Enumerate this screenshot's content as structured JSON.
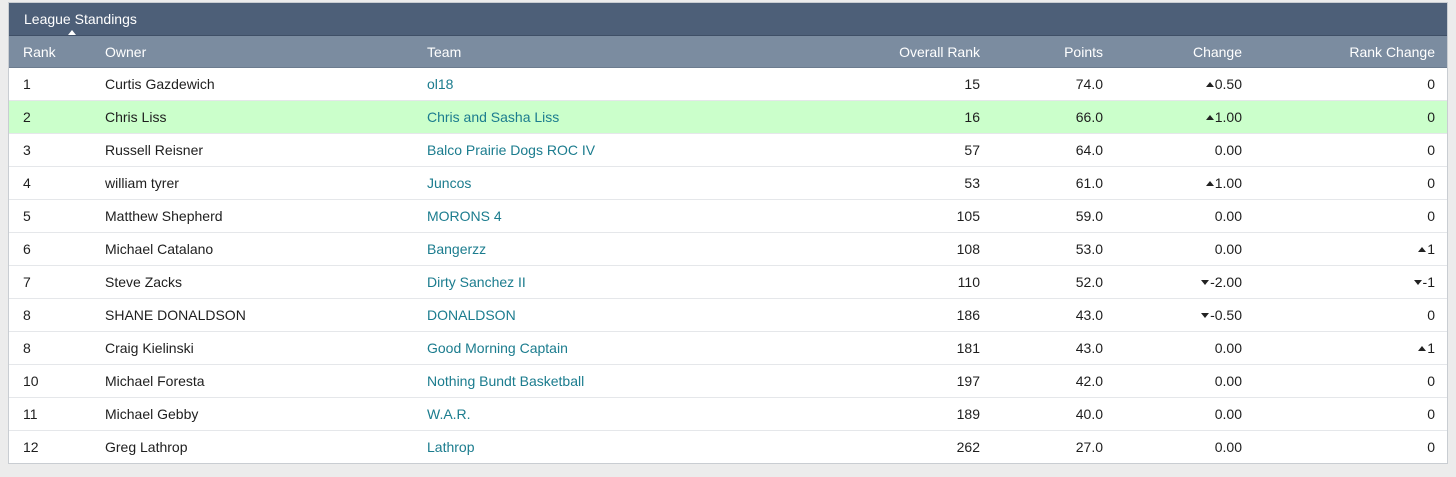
{
  "panel": {
    "title": "League Standings"
  },
  "columns": {
    "rank": "Rank",
    "owner": "Owner",
    "team": "Team",
    "overall_rank": "Overall Rank",
    "points": "Points",
    "change": "Change",
    "rank_change": "Rank Change"
  },
  "rows": [
    {
      "rank": "1",
      "owner": "Curtis Gazdewich",
      "team": "ol18",
      "overall_rank": "15",
      "points": "74.0",
      "change": "0.50",
      "change_dir": "up",
      "rank_change": "0",
      "rank_change_dir": "none",
      "highlight": false
    },
    {
      "rank": "2",
      "owner": "Chris Liss",
      "team": "Chris and Sasha Liss",
      "overall_rank": "16",
      "points": "66.0",
      "change": "1.00",
      "change_dir": "up",
      "rank_change": "0",
      "rank_change_dir": "none",
      "highlight": true
    },
    {
      "rank": "3",
      "owner": "Russell Reisner",
      "team": "Balco Prairie Dogs ROC IV",
      "overall_rank": "57",
      "points": "64.0",
      "change": "0.00",
      "change_dir": "none",
      "rank_change": "0",
      "rank_change_dir": "none",
      "highlight": false
    },
    {
      "rank": "4",
      "owner": "william tyrer",
      "team": "Juncos",
      "overall_rank": "53",
      "points": "61.0",
      "change": "1.00",
      "change_dir": "up",
      "rank_change": "0",
      "rank_change_dir": "none",
      "highlight": false
    },
    {
      "rank": "5",
      "owner": "Matthew Shepherd",
      "team": "MORONS 4",
      "overall_rank": "105",
      "points": "59.0",
      "change": "0.00",
      "change_dir": "none",
      "rank_change": "0",
      "rank_change_dir": "none",
      "highlight": false
    },
    {
      "rank": "6",
      "owner": "Michael Catalano",
      "team": "Bangerzz",
      "overall_rank": "108",
      "points": "53.0",
      "change": "0.00",
      "change_dir": "none",
      "rank_change": "1",
      "rank_change_dir": "up",
      "highlight": false
    },
    {
      "rank": "7",
      "owner": "Steve Zacks",
      "team": "Dirty Sanchez II",
      "overall_rank": "110",
      "points": "52.0",
      "change": "-2.00",
      "change_dir": "down",
      "rank_change": "-1",
      "rank_change_dir": "down",
      "highlight": false
    },
    {
      "rank": "8",
      "owner": "SHANE DONALDSON",
      "team": "DONALDSON",
      "overall_rank": "186",
      "points": "43.0",
      "change": "-0.50",
      "change_dir": "down",
      "rank_change": "0",
      "rank_change_dir": "none",
      "highlight": false
    },
    {
      "rank": "8",
      "owner": "Craig Kielinski",
      "team": "Good Morning Captain",
      "overall_rank": "181",
      "points": "43.0",
      "change": "0.00",
      "change_dir": "none",
      "rank_change": "1",
      "rank_change_dir": "up",
      "highlight": false
    },
    {
      "rank": "10",
      "owner": "Michael Foresta",
      "team": "Nothing Bundt Basketball",
      "overall_rank": "197",
      "points": "42.0",
      "change": "0.00",
      "change_dir": "none",
      "rank_change": "0",
      "rank_change_dir": "none",
      "highlight": false
    },
    {
      "rank": "11",
      "owner": "Michael Gebby",
      "team": "W.A.R.",
      "overall_rank": "189",
      "points": "40.0",
      "change": "0.00",
      "change_dir": "none",
      "rank_change": "0",
      "rank_change_dir": "none",
      "highlight": false
    },
    {
      "rank": "12",
      "owner": "Greg Lathrop",
      "team": "Lathrop",
      "overall_rank": "262",
      "points": "27.0",
      "change": "0.00",
      "change_dir": "none",
      "rank_change": "0",
      "rank_change_dir": "none",
      "highlight": false
    }
  ],
  "colors": {
    "title_bar": "#4d5f78",
    "header_row": "#7b8ca0",
    "highlight_row": "#cbffcb",
    "team_link": "#1b7c8e"
  }
}
